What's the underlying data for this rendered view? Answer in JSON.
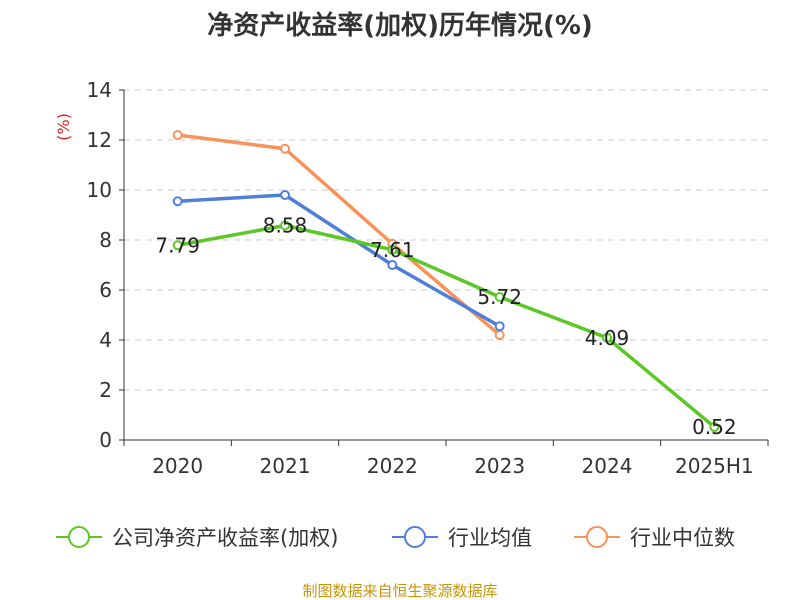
{
  "chart_data": {
    "type": "line",
    "title": "净资产收益率(加权)历年情况(%)",
    "ylabel": "(%)",
    "xlabel": "",
    "categories": [
      "2020",
      "2021",
      "2022",
      "2023",
      "2024",
      "2025H1"
    ],
    "ylim": [
      0,
      14
    ],
    "yticks": [
      0,
      2,
      4,
      6,
      8,
      10,
      12,
      14
    ],
    "grid": true,
    "legend_position": "bottom",
    "series": [
      {
        "name": "公司净资产收益率(加权)",
        "color": "#5cc727",
        "values": [
          7.79,
          8.58,
          7.61,
          5.72,
          4.09,
          0.52
        ],
        "labels": [
          "7.79",
          "8.58",
          "7.61",
          "5.72",
          "4.09",
          "0.52"
        ]
      },
      {
        "name": "行业均值",
        "color": "#4f7fd9",
        "values": [
          9.55,
          9.8,
          7.0,
          4.55,
          null,
          null
        ]
      },
      {
        "name": "行业中位数",
        "color": "#f7935a",
        "values": [
          12.2,
          11.65,
          7.85,
          4.2,
          null,
          null
        ]
      }
    ],
    "source": "制图数据来自恒生聚源数据库",
    "colors": {
      "axis": "#333333",
      "grid": "#cccccc",
      "unit": "#e02020",
      "source": "#c8960a"
    }
  }
}
